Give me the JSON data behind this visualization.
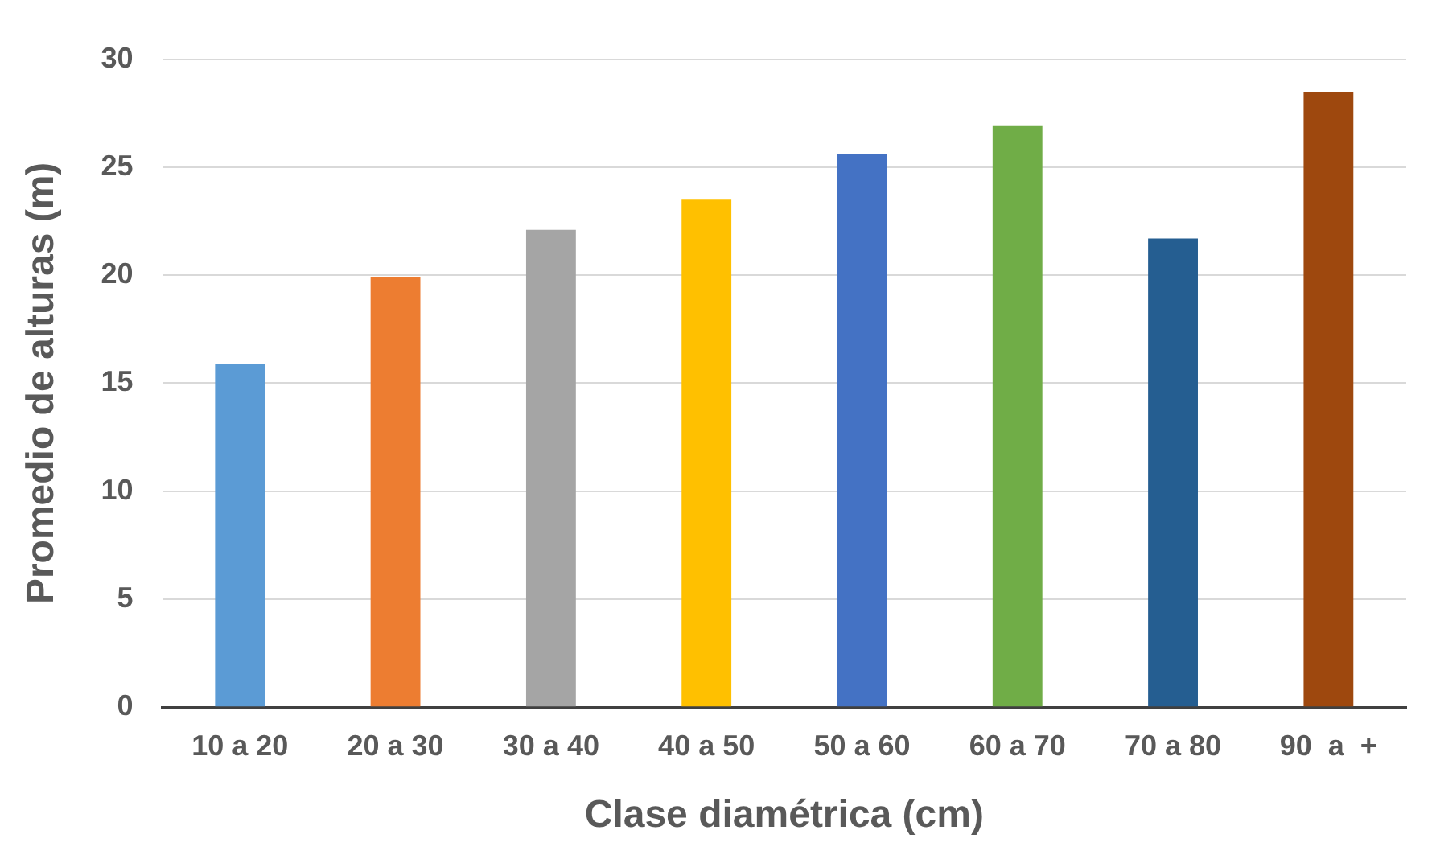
{
  "chart_data": {
    "type": "bar",
    "xlabel": "Clase diamétrica (cm)",
    "ylabel": "Promedio de alturas (m)",
    "categories": [
      "10 a 20",
      "20 a 30",
      "30 a 40",
      "40 a 50",
      "50 a 60",
      "60 a 70",
      "70 a 80",
      "90  a  +"
    ],
    "values": [
      15.9,
      19.9,
      22.1,
      23.5,
      25.6,
      26.9,
      21.7,
      28.5
    ],
    "colors": [
      "#5b9bd5",
      "#ed7d31",
      "#a5a5a5",
      "#ffc000",
      "#4472c4",
      "#70ad47",
      "#255e91",
      "#9e480e"
    ],
    "ylim": [
      0,
      30
    ],
    "yticks": [
      0,
      5,
      10,
      15,
      20,
      25,
      30
    ],
    "grid": "y",
    "legend": false
  }
}
